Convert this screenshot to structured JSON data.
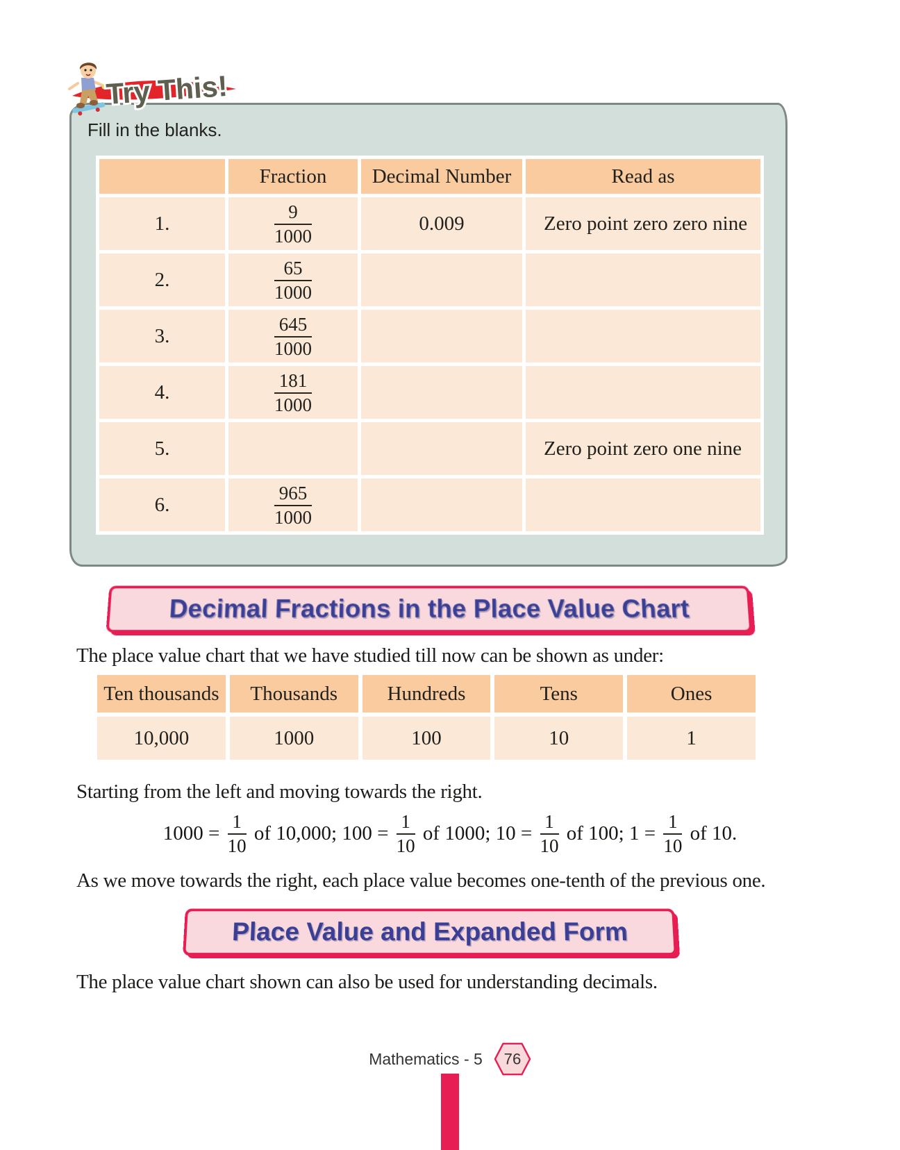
{
  "try_this": {
    "logo_text": "Try This!",
    "instruction": "Fill in the blanks.",
    "table": {
      "headers": [
        "",
        "Fraction",
        "Decimal Number",
        "Read as"
      ],
      "rows": [
        {
          "no": "1.",
          "fraction": {
            "num": "9",
            "den": "1000"
          },
          "decimal": "0.009",
          "read_as": "Zero point zero zero nine"
        },
        {
          "no": "2.",
          "fraction": {
            "num": "65",
            "den": "1000"
          },
          "decimal": "",
          "read_as": ""
        },
        {
          "no": "3.",
          "fraction": {
            "num": "645",
            "den": "1000"
          },
          "decimal": "",
          "read_as": ""
        },
        {
          "no": "4.",
          "fraction": {
            "num": "181",
            "den": "1000"
          },
          "decimal": "",
          "read_as": ""
        },
        {
          "no": "5.",
          "fraction": null,
          "decimal": "",
          "read_as": "Zero point zero one nine"
        },
        {
          "no": "6.",
          "fraction": {
            "num": "965",
            "den": "1000"
          },
          "decimal": "",
          "read_as": ""
        }
      ]
    }
  },
  "section1": {
    "title": "Decimal Fractions in the Place Value Chart",
    "intro": "The place value chart that we have studied till now can be shown as under:",
    "place_value_table": {
      "headers": [
        "Ten thousands",
        "Thousands",
        "Hundreds",
        "Tens",
        "Ones"
      ],
      "values": [
        "10,000",
        "1000",
        "100",
        "10",
        "1"
      ]
    },
    "starting_text": "Starting from the left and moving towards the right.",
    "equation": {
      "segments": [
        {
          "before": "1000 = ",
          "num": "1",
          "den": "10",
          "after": " of 10,000; "
        },
        {
          "before": "100 = ",
          "num": "1",
          "den": "10",
          "after": " of 1000; "
        },
        {
          "before": "10 = ",
          "num": "1",
          "den": "10",
          "after": " of 100; "
        },
        {
          "before": "1 = ",
          "num": "1",
          "den": "10",
          "after": " of 10."
        }
      ]
    },
    "conclusion": "As we move towards the right, each place value becomes one-tenth of the previous one."
  },
  "section2": {
    "title": "Place Value and Expanded Form",
    "intro": "The place value chart shown can also be used for understanding decimals."
  },
  "footer": {
    "book_label": "Mathematics - 5",
    "page_number": "76"
  },
  "colors": {
    "accent_crimson": "#E61E53",
    "banner_pink": "#F9D9DE",
    "title_blue": "#3A3F96",
    "header_orange": "#FACB9E",
    "row_peach": "#FBE8D7",
    "panel_mint": "#D2DFDB",
    "panel_border": "#7E8884",
    "swoosh_red": "#E3242B",
    "logo_text_gray": "#5F5F50"
  }
}
